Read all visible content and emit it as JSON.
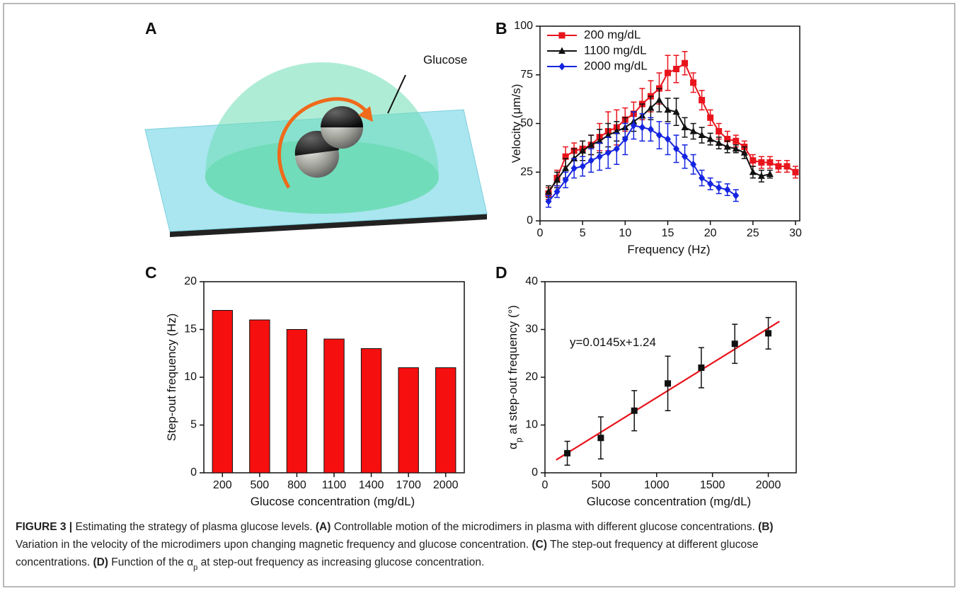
{
  "figure_a": {
    "panel_label": "A",
    "annotation": "Glucose"
  },
  "chart_data": [
    {
      "type": "line",
      "panel_label": "B",
      "xlabel": "Frequency (Hz)",
      "ylabel": "Velocity (μm/s)",
      "xlim": [
        0,
        30.5
      ],
      "xticks": [
        0,
        5,
        10,
        15,
        20,
        25,
        30
      ],
      "ylim": [
        0,
        100
      ],
      "yticks": [
        0,
        25,
        50,
        75,
        100
      ],
      "legend": "upper left",
      "series": [
        {
          "name": "200 mg/dL",
          "color": "#e8141c",
          "marker": "square",
          "x": [
            1,
            2,
            3,
            4,
            5,
            6,
            7,
            8,
            9,
            10,
            11,
            12,
            13,
            14,
            15,
            16,
            17,
            18,
            19,
            20,
            21,
            22,
            23,
            24,
            25,
            26,
            27,
            28,
            29,
            30
          ],
          "values": [
            14,
            22,
            33,
            36,
            37,
            39,
            43,
            46,
            48,
            52,
            55,
            60,
            64,
            68,
            76,
            78,
            81,
            71,
            62,
            53,
            46,
            42,
            41,
            38,
            31,
            30,
            30,
            28,
            28,
            25
          ],
          "errors": [
            3,
            4,
            5,
            4,
            4,
            5,
            7,
            10,
            9,
            6,
            6,
            8,
            8,
            8,
            9,
            7,
            6,
            5,
            5,
            4,
            4,
            4,
            3,
            3,
            3,
            3,
            3,
            3,
            3,
            3
          ]
        },
        {
          "name": "1100 mg/dL",
          "color": "#111111",
          "marker": "triangle",
          "x": [
            1,
            2,
            3,
            4,
            5,
            6,
            7,
            8,
            9,
            10,
            11,
            12,
            13,
            14,
            15,
            16,
            17,
            18,
            19,
            20,
            21,
            22,
            23,
            24,
            25,
            26,
            27
          ],
          "values": [
            15,
            21,
            27,
            32,
            36,
            39,
            41,
            44,
            46,
            48,
            51,
            54,
            58,
            62,
            57,
            56,
            48,
            46,
            44,
            42,
            40,
            38,
            37,
            35,
            25,
            23,
            24
          ],
          "errors": [
            3,
            4,
            5,
            5,
            5,
            5,
            6,
            6,
            5,
            5,
            5,
            6,
            6,
            6,
            6,
            7,
            5,
            4,
            4,
            3,
            3,
            3,
            2,
            3,
            3,
            3,
            2
          ]
        },
        {
          "name": "2000 mg/dL",
          "color": "#1524e0",
          "marker": "diamond",
          "x": [
            1,
            2,
            3,
            4,
            5,
            6,
            7,
            8,
            9,
            10,
            11,
            12,
            13,
            14,
            15,
            16,
            17,
            18,
            19,
            20,
            21,
            22,
            23
          ],
          "values": [
            10,
            15,
            21,
            27,
            28,
            31,
            33,
            35,
            37,
            42,
            49,
            48,
            47,
            44,
            42,
            37,
            33,
            29,
            22,
            19,
            17,
            16,
            13
          ],
          "errors": [
            3,
            3,
            4,
            5,
            5,
            6,
            7,
            8,
            8,
            8,
            7,
            7,
            6,
            7,
            8,
            7,
            6,
            5,
            4,
            3,
            3,
            3,
            3
          ]
        }
      ]
    },
    {
      "type": "bar",
      "panel_label": "C",
      "xlabel": "Glucose concentration (mg/dL)",
      "ylabel": "Step-out frequency (Hz)",
      "categories": [
        "200",
        "500",
        "800",
        "1100",
        "1400",
        "1700",
        "2000"
      ],
      "values": [
        17,
        16,
        15,
        14,
        13,
        11,
        11
      ],
      "color": "#f50f0f",
      "ylim": [
        0,
        20
      ],
      "yticks": [
        0,
        5,
        10,
        15,
        20
      ]
    },
    {
      "type": "scatter",
      "panel_label": "D",
      "xlabel": "Glucose concentration (mg/dL)",
      "ylabel": [
        {
          "text": "α"
        },
        {
          "text": "p",
          "sub": true
        },
        {
          "text": " at step-out frequency (°)"
        }
      ],
      "annotation": "y=0.0145x+1.24",
      "x": [
        200,
        500,
        800,
        1100,
        1400,
        1700,
        2000
      ],
      "values": [
        4.1,
        7.3,
        13,
        18.7,
        22,
        27,
        29.2
      ],
      "errors": [
        2.5,
        4.4,
        4.2,
        5.7,
        4.2,
        4.1,
        3.3
      ],
      "color": "#111111",
      "fit": {
        "slope": 0.0145,
        "intercept": 1.24,
        "xrange": [
          100,
          2100
        ],
        "color": "#e8141c"
      },
      "xlim": [
        0,
        2250
      ],
      "xticks": [
        0,
        500,
        1000,
        1500,
        2000
      ],
      "ylim": [
        0,
        40
      ],
      "yticks": [
        0,
        10,
        20,
        30,
        40
      ]
    }
  ],
  "caption": [
    [
      {
        "text": "FIGURE 3 |",
        "bold": true
      },
      {
        "text": " Estimating the strategy of plasma glucose levels. "
      },
      {
        "text": "(A)",
        "bold": true
      },
      {
        "text": " Controllable motion of the microdimers in plasma with different glucose concentrations. "
      },
      {
        "text": "(B)",
        "bold": true
      }
    ],
    [
      {
        "text": "Variation in the velocity of the microdimers upon changing magnetic frequency and glucose concentration. "
      },
      {
        "text": "(C)",
        "bold": true
      },
      {
        "text": " The step-out frequency at different glucose"
      }
    ],
    [
      {
        "text": "concentrations. "
      },
      {
        "text": "(D)",
        "bold": true
      },
      {
        "text": " Function of the "
      },
      {
        "text": "α"
      },
      {
        "text": "p",
        "sub": true
      },
      {
        "text": " at step-out frequency as increasing glucose concentration."
      }
    ]
  ]
}
